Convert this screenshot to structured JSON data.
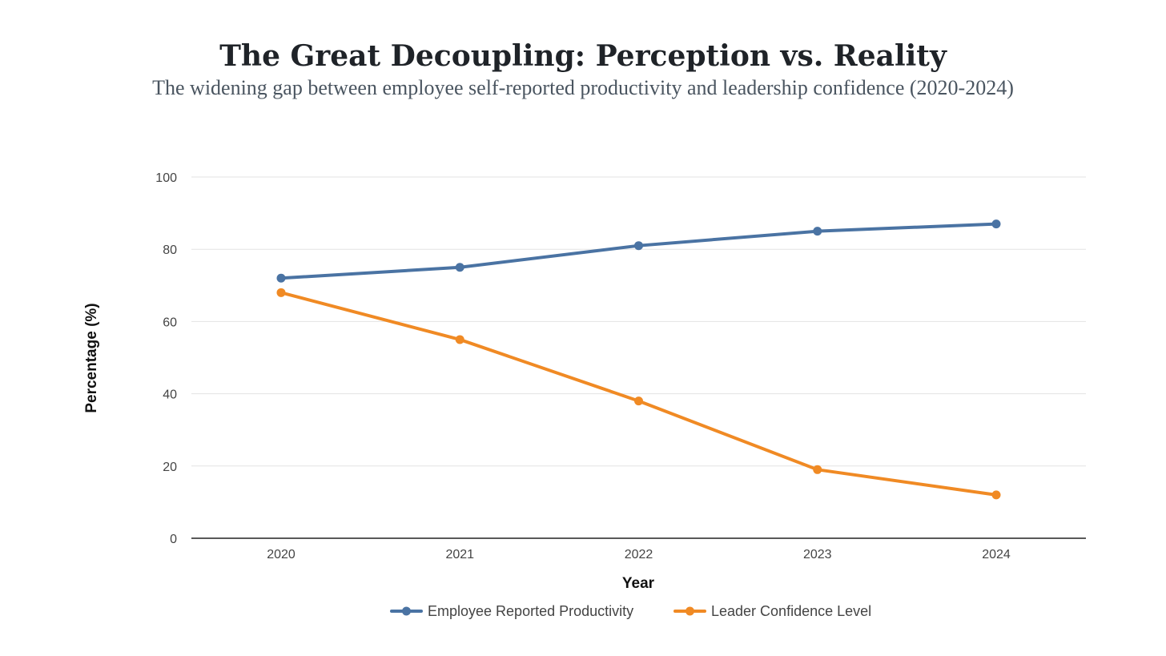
{
  "chart_data": {
    "type": "line",
    "title": "The Great Decoupling: Perception vs. Reality",
    "subtitle": "The widening gap between employee self-reported productivity and leadership confidence (2020-2024)",
    "xlabel": "Year",
    "ylabel": "Percentage (%)",
    "categories": [
      "2020",
      "2021",
      "2022",
      "2023",
      "2024"
    ],
    "ylim": [
      0,
      100
    ],
    "yticks": [
      0,
      20,
      40,
      60,
      80,
      100
    ],
    "grid": true,
    "legend_position": "bottom",
    "series": [
      {
        "name": "Employee Reported Productivity",
        "color": "#4a73a3",
        "values": [
          72,
          75,
          81,
          85,
          87
        ]
      },
      {
        "name": "Leader Confidence Level",
        "color": "#f08a24",
        "values": [
          68,
          55,
          38,
          19,
          12
        ]
      }
    ]
  }
}
